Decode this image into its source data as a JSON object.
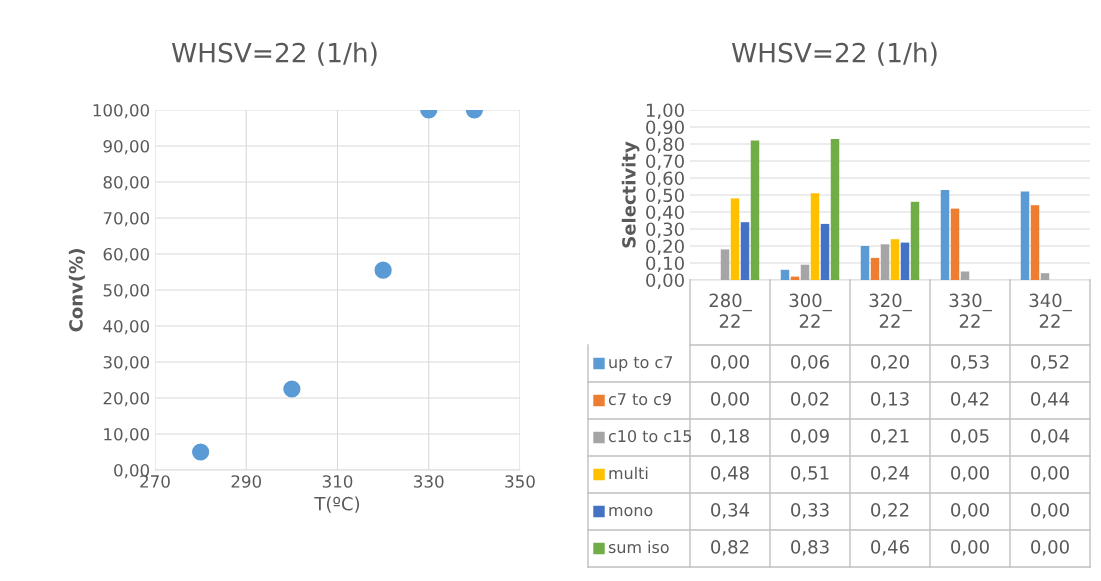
{
  "chart_data": [
    {
      "type": "scatter",
      "title": "WHSV=22 (1/h)",
      "xlabel": "T(ºC)",
      "ylabel": "Conv(%)",
      "x": [
        280,
        300,
        320,
        330,
        340
      ],
      "series": [
        {
          "color": "#5b9bd5",
          "values": [
            5,
            22.5,
            55.5,
            100,
            100
          ]
        }
      ],
      "marker": "circle",
      "grid": true,
      "xlim": [
        270,
        350
      ],
      "xticks": [
        270,
        290,
        310,
        330,
        350
      ],
      "ylim": [
        0,
        100
      ],
      "yticks": [
        {
          "value": 0,
          "label": "0,00"
        },
        {
          "value": 10,
          "label": "10,00"
        },
        {
          "value": 20,
          "label": "20,00"
        },
        {
          "value": 30,
          "label": "30,00"
        },
        {
          "value": 40,
          "label": "40,00"
        },
        {
          "value": 50,
          "label": "50,00"
        },
        {
          "value": 60,
          "label": "60,00"
        },
        {
          "value": 70,
          "label": "70,00"
        },
        {
          "value": 80,
          "label": "80,00"
        },
        {
          "value": 90,
          "label": "90,00"
        },
        {
          "value": 100,
          "label": "100,00"
        }
      ]
    },
    {
      "type": "bar",
      "title": "WHSV=22 (1/h)",
      "ylabel": "Selectivity",
      "categories": [
        "280_\n22",
        "300_\n22",
        "320_\n22",
        "330_\n22",
        "340_\n22"
      ],
      "grid": "y",
      "legend": "bottom",
      "ylim": [
        0,
        1
      ],
      "yticks": [
        {
          "value": 0,
          "label": "0,00"
        },
        {
          "value": 0.1,
          "label": "0,10"
        },
        {
          "value": 0.2,
          "label": "0,20"
        },
        {
          "value": 0.3,
          "label": "0,30"
        },
        {
          "value": 0.4,
          "label": "0,40"
        },
        {
          "value": 0.5,
          "label": "0,50"
        },
        {
          "value": 0.6,
          "label": "0,60"
        },
        {
          "value": 0.7,
          "label": "0,70"
        },
        {
          "value": 0.8,
          "label": "0,80"
        },
        {
          "value": 0.9,
          "label": "0,90"
        },
        {
          "value": 1,
          "label": "1,00"
        }
      ],
      "series": [
        {
          "name": "up to c7",
          "color": "#5b9bd5",
          "values": [
            0.0,
            0.06,
            0.2,
            0.53,
            0.52
          ],
          "value_labels": [
            "0,00",
            "0,06",
            "0,20",
            "0,53",
            "0,52"
          ]
        },
        {
          "name": "c7 to c9",
          "color": "#ed7d31",
          "values": [
            0.0,
            0.02,
            0.13,
            0.42,
            0.44
          ],
          "value_labels": [
            "0,00",
            "0,02",
            "0,13",
            "0,42",
            "0,44"
          ]
        },
        {
          "name": "c10 to c15",
          "color": "#a5a5a5",
          "values": [
            0.18,
            0.09,
            0.21,
            0.05,
            0.04
          ],
          "value_labels": [
            "0,18",
            "0,09",
            "0,21",
            "0,05",
            "0,04"
          ]
        },
        {
          "name": "multi",
          "color": "#ffc000",
          "values": [
            0.48,
            0.51,
            0.24,
            0.0,
            0.0
          ],
          "value_labels": [
            "0,48",
            "0,51",
            "0,24",
            "0,00",
            "0,00"
          ]
        },
        {
          "name": "mono",
          "color": "#4472c4",
          "values": [
            0.34,
            0.33,
            0.22,
            0.0,
            0.0
          ],
          "value_labels": [
            "0,34",
            "0,33",
            "0,22",
            "0,00",
            "0,00"
          ]
        },
        {
          "name": "sum iso",
          "color": "#70ad47",
          "values": [
            0.82,
            0.83,
            0.46,
            0.0,
            0.0
          ],
          "value_labels": [
            "0,82",
            "0,83",
            "0,46",
            "0,00",
            "0,00"
          ]
        }
      ]
    }
  ]
}
